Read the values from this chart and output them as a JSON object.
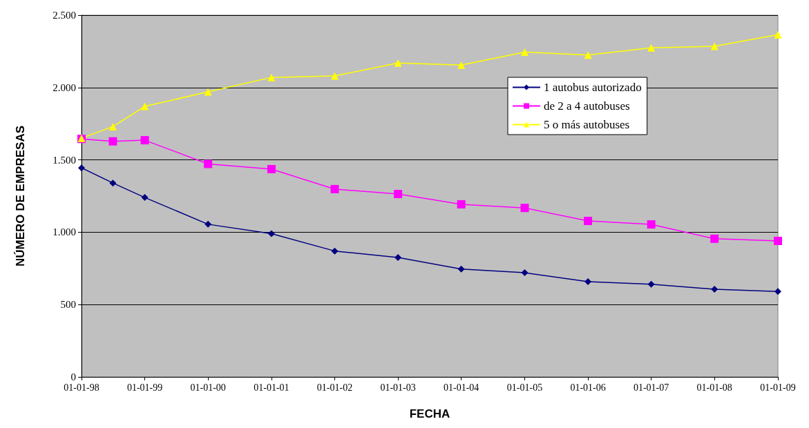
{
  "chart_data": {
    "type": "line",
    "xlabel": "FECHA",
    "ylabel": "NÚMERO DE EMPRESAS",
    "x": [
      "1998-01-01",
      "1998-07-01",
      "1999-01-01",
      "2000-01-01",
      "2001-01-01",
      "2002-01-01",
      "2003-01-01",
      "2004-01-01",
      "2005-01-01",
      "2006-01-01",
      "2007-01-01",
      "2008-01-01",
      "2009-01-01"
    ],
    "series": [
      {
        "name": "1 autobus autorizado",
        "color": "#000080",
        "marker": "diamond",
        "values": [
          1445,
          1340,
          1240,
          1055,
          990,
          870,
          825,
          745,
          720,
          658,
          640,
          606,
          590
        ]
      },
      {
        "name": "de 2 a 4 autobuses",
        "color": "#ff00ff",
        "marker": "square",
        "values": [
          1645,
          1628,
          1636,
          1472,
          1436,
          1298,
          1264,
          1193,
          1168,
          1078,
          1054,
          955,
          940
        ]
      },
      {
        "name": "5 o más autobuses",
        "color": "#ffff00",
        "marker": "triangle",
        "values": [
          1650,
          1730,
          1870,
          1970,
          2070,
          2080,
          2170,
          2155,
          2245,
          2225,
          2275,
          2285,
          2365
        ]
      }
    ],
    "xlim": [
      "1998-01-01",
      "2009-01-01"
    ],
    "xticks": [
      {
        "value": "1998-01-01",
        "label": "01-01-98"
      },
      {
        "value": "1999-01-01",
        "label": "01-01-99"
      },
      {
        "value": "2000-01-01",
        "label": "01-01-00"
      },
      {
        "value": "2001-01-01",
        "label": "01-01-01"
      },
      {
        "value": "2002-01-01",
        "label": "01-01-02"
      },
      {
        "value": "2003-01-01",
        "label": "01-01-03"
      },
      {
        "value": "2004-01-01",
        "label": "01-01-04"
      },
      {
        "value": "2005-01-01",
        "label": "01-01-05"
      },
      {
        "value": "2006-01-01",
        "label": "01-01-06"
      },
      {
        "value": "2007-01-01",
        "label": "01-01-07"
      },
      {
        "value": "2008-01-01",
        "label": "01-01-08"
      },
      {
        "value": "2009-01-01",
        "label": "01-01-09"
      }
    ],
    "ylim": [
      0,
      2500
    ],
    "yticks": [
      0,
      500,
      {
        "value": 1000,
        "label": "1.000"
      },
      {
        "value": 1500,
        "label": "1.500"
      },
      {
        "value": 2000,
        "label": "2.000"
      },
      {
        "value": 2500,
        "label": "2.500"
      }
    ],
    "grid": "y",
    "legend": "top right",
    "line_style": "solid"
  }
}
